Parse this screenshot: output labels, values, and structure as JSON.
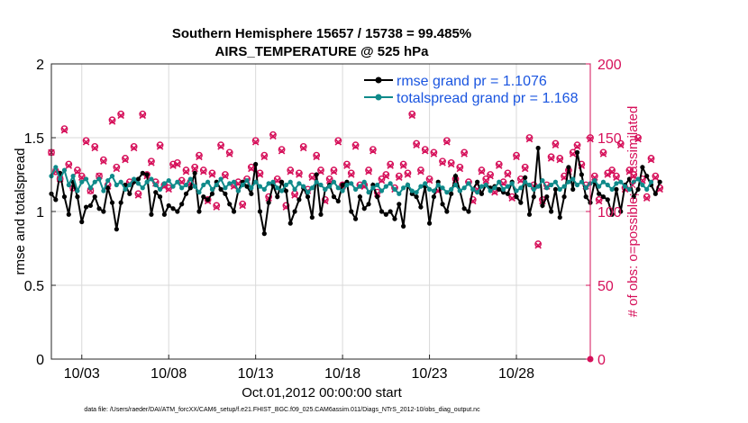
{
  "chart_data": {
    "type": "line",
    "title_line1": "Southern Hemisphere 15657 / 15738 = 99.485%",
    "title_line2": "AIRS_TEMPERATURE @ 525 hPa",
    "xlabel": "Oct.01,2012 00:00:00 start",
    "ylabel_left": "rmse and totalspread",
    "ylabel_right": "# of obs: o=possible; ×=assimilated",
    "footnote": "data file: /Users/raeder/DAI/ATM_forcXX/CAM6_setup/f.e21.FHIST_BGC.f09_025.CAM6assim.011/Diags_NTrS_2012-10/obs_diag_output.nc",
    "xlim": [
      1.25,
      32.25
    ],
    "ylim_left": [
      0,
      2
    ],
    "ylim_right": [
      0,
      200
    ],
    "x_ticks": [
      3,
      8,
      13,
      18,
      23,
      28
    ],
    "x_tick_labels": [
      "10/03",
      "10/08",
      "10/13",
      "10/18",
      "10/23",
      "10/28"
    ],
    "y_left_ticks": [
      0,
      0.5,
      1,
      1.5,
      2
    ],
    "y_left_tick_labels": [
      "0",
      "0.5",
      "1",
      "1.5",
      "2"
    ],
    "y_right_ticks": [
      0,
      50,
      100,
      150,
      200
    ],
    "y_right_tick_labels": [
      "0",
      "50",
      "100",
      "150",
      "200"
    ],
    "colors": {
      "rmse": "#000000",
      "spread": "#0f8a8a",
      "obs": "#d6105a",
      "legend_text": "#1a55e0"
    },
    "x_start": 1.25,
    "x_step": 0.25,
    "series": [
      {
        "name": "rmse grand pr = 1.1076",
        "values": [
          1.12,
          1.08,
          1.26,
          1.1,
          0.98,
          1.2,
          1.1,
          0.93,
          1.03,
          1.04,
          1.1,
          1.02,
          1.0,
          1.16,
          1.06,
          0.88,
          1.06,
          1.18,
          1.12,
          1.2,
          1.22,
          1.26,
          1.25,
          0.98,
          1.13,
          1.1,
          0.98,
          1.04,
          1.02,
          1.0,
          1.05,
          1.12,
          1.16,
          1.26,
          1.0,
          1.1,
          1.08,
          1.12,
          1.2,
          1.15,
          1.12,
          1.05,
          1.0,
          1.14,
          1.2,
          1.17,
          1.12,
          1.32,
          1.0,
          0.85,
          1.06,
          1.18,
          1.1,
          1.2,
          1.14,
          0.92,
          1.0,
          1.08,
          1.16,
          1.1,
          0.96,
          1.25,
          0.98,
          1.15,
          1.18,
          1.1,
          1.07,
          1.18,
          1.2,
          1.0,
          0.95,
          1.1,
          1.02,
          1.05,
          1.18,
          1.1,
          1.0,
          0.98,
          1.0,
          0.95,
          1.05,
          0.9,
          1.18,
          1.12,
          1.1,
          1.03,
          1.17,
          0.92,
          1.1,
          1.2,
          1.05,
          1.0,
          1.12,
          1.24,
          1.14,
          1.02,
          1.0,
          1.15,
          1.2,
          1.12,
          1.18,
          1.16,
          1.17,
          1.15,
          1.13,
          1.12,
          1.2,
          1.1,
          1.06,
          1.23,
          0.98,
          1.1,
          1.43,
          1.04,
          1.1,
          1.0,
          1.15,
          0.96,
          1.1,
          1.3,
          1.15,
          1.4,
          1.25,
          1.1,
          1.06,
          1.2,
          1.12,
          1.1,
          1.08,
          0.98,
          1.15,
          1.0,
          1.18,
          1.22,
          1.1,
          1.15,
          1.3,
          1.24,
          1.18,
          1.12,
          1.2
        ]
      },
      {
        "name": "totalspread grand pr = 1.168",
        "values": [
          1.24,
          1.3,
          1.22,
          1.28,
          1.18,
          1.24,
          1.14,
          1.2,
          1.22,
          1.16,
          1.2,
          1.22,
          1.14,
          1.21,
          1.24,
          1.18,
          1.2,
          1.15,
          1.18,
          1.22,
          1.19,
          1.16,
          1.2,
          1.22,
          1.18,
          1.15,
          1.19,
          1.21,
          1.17,
          1.2,
          1.16,
          1.18,
          1.22,
          1.17,
          1.13,
          1.18,
          1.2,
          1.15,
          1.18,
          1.22,
          1.16,
          1.19,
          1.2,
          1.14,
          1.18,
          1.21,
          1.16,
          1.2,
          1.17,
          1.15,
          1.19,
          1.2,
          1.16,
          1.14,
          1.18,
          1.2,
          1.15,
          1.19,
          1.17,
          1.13,
          1.16,
          1.2,
          1.18,
          1.15,
          1.17,
          1.2,
          1.16,
          1.14,
          1.18,
          1.19,
          1.15,
          1.17,
          1.2,
          1.13,
          1.16,
          1.18,
          1.14,
          1.17,
          1.19,
          1.15,
          1.12,
          1.16,
          1.18,
          1.14,
          1.13,
          1.17,
          1.19,
          1.15,
          1.14,
          1.18,
          1.16,
          1.13,
          1.15,
          1.18,
          1.14,
          1.16,
          1.19,
          1.15,
          1.13,
          1.17,
          1.18,
          1.14,
          1.16,
          1.2,
          1.15,
          1.17,
          1.19,
          1.14,
          1.16,
          1.2,
          1.18,
          1.15,
          1.17,
          1.21,
          1.16,
          1.18,
          1.2,
          1.15,
          1.17,
          1.2,
          1.22,
          1.18,
          1.2,
          1.16,
          1.19,
          1.21,
          1.17,
          1.2,
          1.18,
          1.15,
          1.19,
          1.2,
          1.17,
          1.15,
          1.2,
          1.22,
          1.18,
          1.15,
          1.2
        ]
      },
      {
        "name": "# obs possible",
        "axis": "right",
        "values": [
          140,
          127,
          122,
          156,
          132,
          116,
          128,
          124,
          148,
          114,
          144,
          124,
          135,
          118,
          162,
          130,
          166,
          136,
          120,
          144,
          112,
          166,
          125,
          134,
          120,
          145,
          118,
          116,
          132,
          133,
          121,
          128,
          120,
          130,
          138,
          128,
          108,
          126,
          104,
          145,
          125,
          140,
          118,
          120,
          105,
          122,
          130,
          148,
          126,
          138,
          110,
          152,
          122,
          142,
          104,
          128,
          112,
          126,
          144,
          115,
          124,
          138,
          128,
          108,
          122,
          128,
          148,
          118,
          132,
          126,
          145,
          118,
          118,
          128,
          142,
          113,
          122,
          125,
          132,
          116,
          124,
          132,
          126,
          166,
          146,
          128,
          142,
          122,
          140,
          115,
          134,
          148,
          133,
          122,
          130,
          140,
          120,
          108,
          116,
          128,
          122,
          125,
          114,
          132,
          120,
          126,
          110,
          138,
          122,
          130,
          150,
          118,
          78,
          108,
          118,
          137,
          146,
          136,
          124,
          128,
          140,
          145,
          132,
          118,
          150,
          124,
          108,
          140,
          126,
          128,
          124,
          146,
          116,
          128,
          125,
          150,
          122,
          110,
          136,
          124,
          116
        ]
      },
      {
        "name": "# obs assimilated",
        "axis": "right",
        "values": [
          140,
          127,
          122,
          155,
          131,
          116,
          127,
          123,
          147,
          114,
          143,
          124,
          134,
          117,
          161,
          129,
          165,
          135,
          119,
          143,
          111,
          165,
          124,
          133,
          119,
          144,
          117,
          115,
          131,
          132,
          120,
          127,
          119,
          129,
          137,
          127,
          107,
          125,
          103,
          144,
          124,
          139,
          117,
          119,
          104,
          121,
          129,
          147,
          125,
          137,
          109,
          151,
          121,
          141,
          103,
          127,
          111,
          125,
          143,
          114,
          123,
          137,
          127,
          107,
          121,
          127,
          147,
          117,
          131,
          125,
          144,
          117,
          117,
          127,
          141,
          112,
          121,
          124,
          131,
          115,
          123,
          131,
          125,
          165,
          145,
          127,
          141,
          121,
          139,
          114,
          133,
          147,
          132,
          121,
          129,
          139,
          119,
          107,
          115,
          127,
          121,
          124,
          113,
          131,
          119,
          125,
          109,
          137,
          121,
          129,
          149,
          117,
          77,
          107,
          117,
          136,
          145,
          135,
          123,
          127,
          139,
          144,
          131,
          117,
          149,
          123,
          107,
          139,
          125,
          127,
          123,
          145,
          115,
          127,
          124,
          149,
          121,
          109,
          135,
          123,
          115
        ]
      }
    ]
  }
}
